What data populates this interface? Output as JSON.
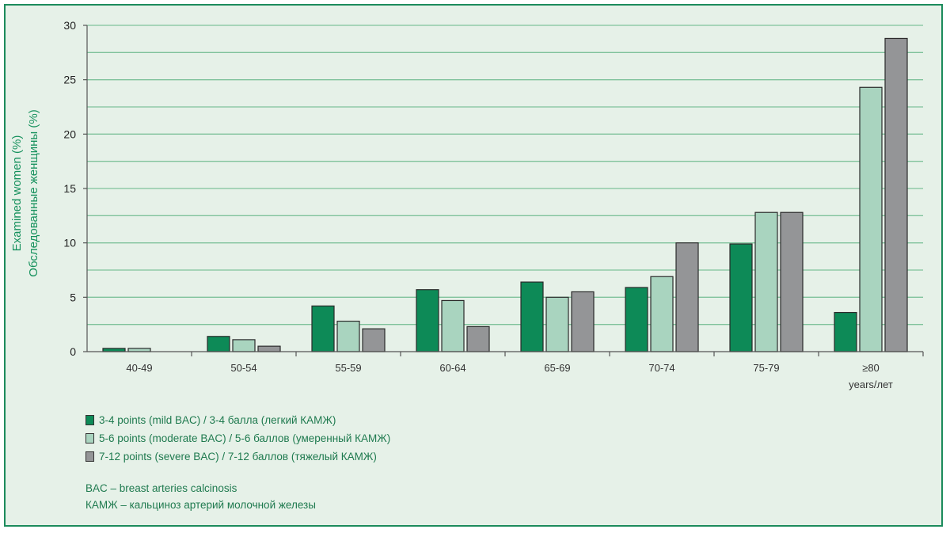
{
  "chart_data": {
    "type": "bar",
    "ylabel_lines": [
      "Examined women (%)",
      "Обследованные женщины (%)"
    ],
    "ylim": [
      0,
      30
    ],
    "yticks": [
      0,
      5,
      10,
      15,
      20,
      25,
      30
    ],
    "grid": true,
    "categories": [
      "40-49",
      "50-54",
      "55-59",
      "60-64",
      "65-69",
      "70-74",
      "75-79",
      "≥80"
    ],
    "category_sublabel": {
      "index": 7,
      "text": "years/лет"
    },
    "series": [
      {
        "name": "3-4 points (mild BAC) / 3-4 балла (легкий КАМЖ)",
        "color": "#0d8a57",
        "values": [
          0.3,
          1.4,
          4.2,
          5.7,
          6.4,
          5.9,
          9.9,
          3.6
        ]
      },
      {
        "name": "5-6 points (moderate BAC) / 5-6 баллов (умеренный КАМЖ)",
        "color": "#a9d4bf",
        "values": [
          0.3,
          1.1,
          2.8,
          4.7,
          5.0,
          6.9,
          12.8,
          24.3
        ]
      },
      {
        "name": "7-12 points (severe BAC) / 7-12 баллов (тяжелый КАМЖ)",
        "color": "#949597",
        "values": [
          0,
          0.5,
          2.1,
          2.3,
          5.5,
          10.0,
          12.8,
          28.8
        ]
      }
    ],
    "legend_position": "bottom-left"
  },
  "notes": [
    "BAC – breast arteries calcinosis",
    "КАМЖ – кальциноз артерий молочной железы"
  ],
  "colors": {
    "panel_bg": "#e6f1e8",
    "frame": "#1c8b5c",
    "gridline": "#7fc29b",
    "axis_label": "#16915d"
  }
}
